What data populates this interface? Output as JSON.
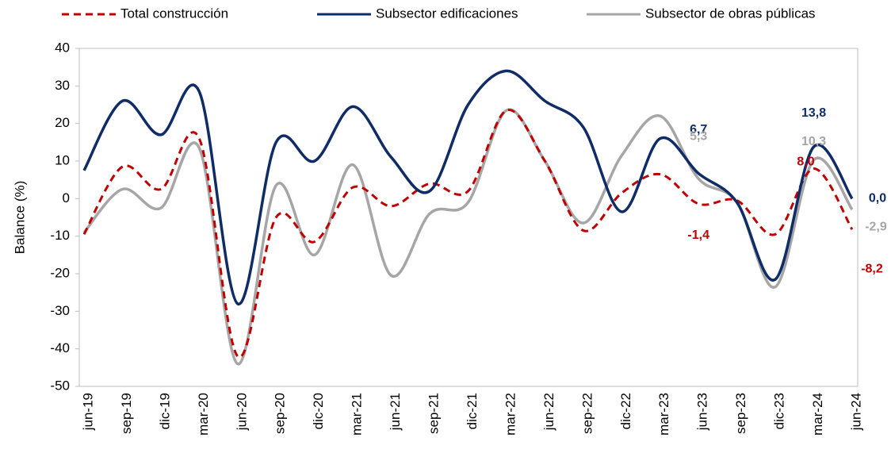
{
  "chart_data": {
    "type": "line",
    "y_label": "Balance (%)",
    "categories": [
      "jun-19",
      "sep-19",
      "dic-19",
      "mar-20",
      "jun-20",
      "sep-20",
      "dic-20",
      "mar-21",
      "jun-21",
      "sep-21",
      "dic-21",
      "mar-22",
      "jun-22",
      "sep-22",
      "dic-22",
      "mar-23",
      "jun-23",
      "sep-23",
      "dic-23",
      "mar-24",
      "jun-24"
    ],
    "series": [
      {
        "name": "Total construcción",
        "color": "#c00000",
        "dash": true,
        "values": [
          -9.5,
          8.5,
          2.5,
          16,
          -42,
          -5,
          -11.5,
          3,
          -2,
          4,
          2,
          23.5,
          10,
          -8.5,
          1.5,
          6.5,
          -1.4,
          -0.5,
          -9.5,
          8.0,
          -8.2
        ],
        "value_labels": [
          null,
          null,
          null,
          null,
          null,
          null,
          null,
          null,
          null,
          null,
          null,
          null,
          null,
          null,
          null,
          null,
          "-1,4",
          null,
          null,
          "8,0",
          "-8,2"
        ]
      },
      {
        "name": "Subsector edificaciones",
        "color": "#0f2c66",
        "dash": false,
        "values": [
          7.5,
          26,
          17,
          28.5,
          -28,
          15,
          10,
          24.5,
          11,
          2,
          25,
          34,
          26,
          19,
          -3.5,
          16,
          6.7,
          -1,
          -21.5,
          13.8,
          0.0
        ],
        "value_labels": [
          null,
          null,
          null,
          null,
          null,
          null,
          null,
          null,
          null,
          null,
          null,
          null,
          null,
          null,
          null,
          null,
          "6,7",
          null,
          null,
          "13,8",
          "0,0"
        ]
      },
      {
        "name": "Subsector de obras públicas",
        "color": "#a6a6a6",
        "dash": false,
        "values": [
          -9,
          2.5,
          -2.5,
          13.5,
          -44,
          3.5,
          -15,
          9,
          -20.5,
          -4,
          -1,
          23.5,
          10,
          -6.5,
          11.5,
          22,
          5.3,
          -1,
          -23.5,
          10.3,
          -2.9
        ],
        "value_labels": [
          null,
          null,
          null,
          null,
          null,
          null,
          null,
          null,
          null,
          null,
          null,
          null,
          null,
          null,
          null,
          null,
          "5,3",
          null,
          null,
          "10,3",
          "-2,9"
        ]
      }
    ],
    "ylim": [
      -50,
      40
    ],
    "yticks": [
      -50,
      -40,
      -30,
      -20,
      -10,
      0,
      10,
      20,
      30,
      40
    ]
  }
}
